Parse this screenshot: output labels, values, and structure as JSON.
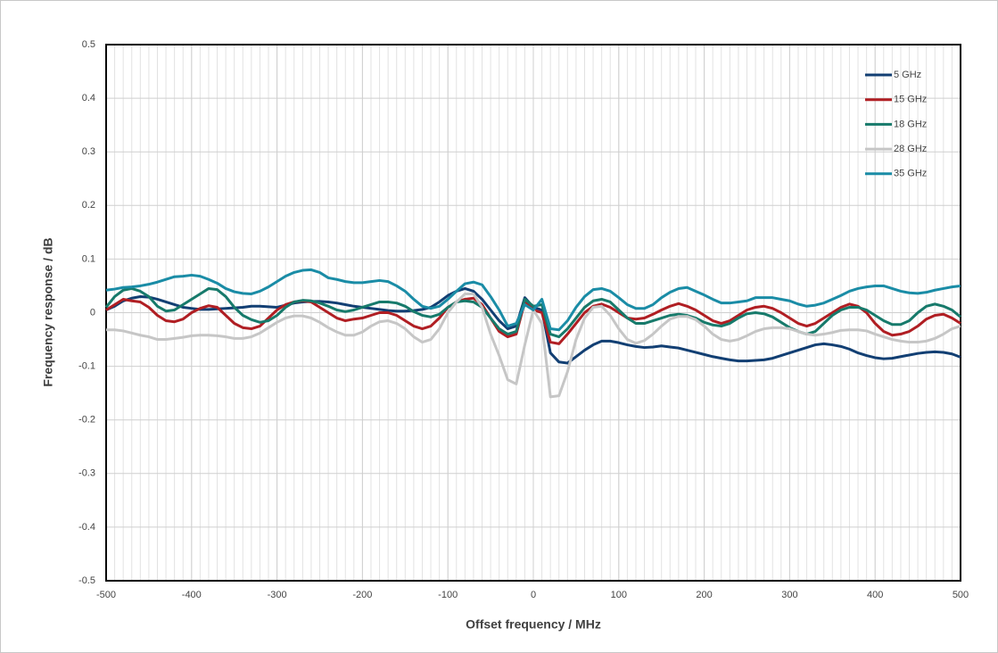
{
  "chart_data": {
    "type": "line",
    "xlabel": "Offset frequency / MHz",
    "ylabel": "Frequency response / dB",
    "x": [
      -500,
      -490,
      -480,
      -470,
      -460,
      -450,
      -440,
      -430,
      -420,
      -410,
      -400,
      -390,
      -380,
      -370,
      -360,
      -350,
      -340,
      -330,
      -320,
      -310,
      -300,
      -290,
      -280,
      -270,
      -260,
      -250,
      -240,
      -230,
      -220,
      -210,
      -200,
      -190,
      -180,
      -170,
      -160,
      -150,
      -140,
      -130,
      -120,
      -110,
      -100,
      -90,
      -80,
      -70,
      -60,
      -50,
      -40,
      -30,
      -20,
      -10,
      0,
      10,
      20,
      30,
      40,
      50,
      60,
      70,
      80,
      90,
      100,
      110,
      120,
      130,
      140,
      150,
      160,
      170,
      180,
      190,
      200,
      210,
      220,
      230,
      240,
      250,
      260,
      270,
      280,
      290,
      300,
      310,
      320,
      330,
      340,
      350,
      360,
      370,
      380,
      390,
      400,
      410,
      420,
      430,
      440,
      450,
      460,
      470,
      480,
      490,
      500
    ],
    "series": [
      {
        "name": "5 GHz",
        "color": "#123f73",
        "values": [
          0.005,
          0.012,
          0.022,
          0.027,
          0.03,
          0.029,
          0.025,
          0.02,
          0.015,
          0.01,
          0.008,
          0.006,
          0.006,
          0.007,
          0.008,
          0.009,
          0.01,
          0.012,
          0.012,
          0.011,
          0.01,
          0.014,
          0.018,
          0.02,
          0.021,
          0.021,
          0.02,
          0.018,
          0.015,
          0.012,
          0.01,
          0.008,
          0.006,
          0.004,
          0.003,
          0.003,
          0.004,
          0.006,
          0.01,
          0.02,
          0.032,
          0.04,
          0.045,
          0.04,
          0.025,
          0.005,
          -0.015,
          -0.03,
          -0.025,
          0.028,
          0.01,
          0.005,
          -0.075,
          -0.092,
          -0.094,
          -0.082,
          -0.07,
          -0.06,
          -0.053,
          -0.053,
          -0.056,
          -0.06,
          -0.063,
          -0.065,
          -0.064,
          -0.062,
          -0.064,
          -0.066,
          -0.07,
          -0.074,
          -0.078,
          -0.082,
          -0.085,
          -0.088,
          -0.09,
          -0.09,
          -0.089,
          -0.088,
          -0.085,
          -0.08,
          -0.075,
          -0.07,
          -0.065,
          -0.06,
          -0.058,
          -0.06,
          -0.063,
          -0.068,
          -0.075,
          -0.08,
          -0.084,
          -0.086,
          -0.085,
          -0.082,
          -0.079,
          -0.076,
          -0.074,
          -0.073,
          -0.074,
          -0.077,
          -0.083
        ]
      },
      {
        "name": "15 GHz",
        "color": "#b01e23",
        "values": [
          0.005,
          0.015,
          0.025,
          0.022,
          0.02,
          0.01,
          -0.005,
          -0.015,
          -0.017,
          -0.012,
          0,
          0.008,
          0.013,
          0.01,
          -0.005,
          -0.02,
          -0.028,
          -0.03,
          -0.025,
          -0.01,
          0.005,
          0.015,
          0.02,
          0.022,
          0.02,
          0.01,
          0,
          -0.01,
          -0.015,
          -0.012,
          -0.01,
          -0.005,
          0,
          0,
          -0.005,
          -0.015,
          -0.025,
          -0.03,
          -0.025,
          -0.01,
          0.01,
          0.02,
          0.025,
          0.027,
          0.015,
          -0.01,
          -0.035,
          -0.045,
          -0.04,
          0.02,
          0.005,
          0,
          -0.055,
          -0.058,
          -0.04,
          -0.02,
          0,
          0.012,
          0.016,
          0.01,
          0,
          -0.01,
          -0.012,
          -0.01,
          -0.003,
          0.005,
          0.012,
          0.017,
          0.012,
          0.005,
          -0.005,
          -0.015,
          -0.02,
          -0.015,
          -0.005,
          0.005,
          0.01,
          0.012,
          0.008,
          0,
          -0.01,
          -0.02,
          -0.025,
          -0.02,
          -0.01,
          0,
          0.01,
          0.016,
          0.012,
          0,
          -0.02,
          -0.035,
          -0.042,
          -0.04,
          -0.035,
          -0.025,
          -0.012,
          -0.005,
          -0.003,
          -0.01,
          -0.02
        ]
      },
      {
        "name": "18 GHz",
        "color": "#177a6b",
        "values": [
          0.01,
          0.03,
          0.042,
          0.045,
          0.04,
          0.03,
          0.012,
          0.003,
          0.005,
          0.015,
          0.025,
          0.035,
          0.045,
          0.043,
          0.03,
          0.01,
          -0.005,
          -0.013,
          -0.018,
          -0.015,
          -0.005,
          0.01,
          0.02,
          0.023,
          0.022,
          0.018,
          0.012,
          0.005,
          0.002,
          0.005,
          0.01,
          0.015,
          0.02,
          0.02,
          0.018,
          0.012,
          0.002,
          -0.005,
          -0.008,
          -0.003,
          0.01,
          0.02,
          0.022,
          0.02,
          0.01,
          -0.01,
          -0.03,
          -0.04,
          -0.035,
          0.025,
          0.012,
          0.015,
          -0.04,
          -0.045,
          -0.03,
          -0.01,
          0.01,
          0.022,
          0.025,
          0.02,
          0.005,
          -0.01,
          -0.02,
          -0.02,
          -0.015,
          -0.01,
          -0.005,
          -0.003,
          -0.005,
          -0.01,
          -0.018,
          -0.023,
          -0.025,
          -0.02,
          -0.01,
          -0.002,
          0,
          -0.002,
          -0.008,
          -0.018,
          -0.028,
          -0.035,
          -0.04,
          -0.035,
          -0.02,
          -0.005,
          0.005,
          0.01,
          0.01,
          0.005,
          -0.005,
          -0.015,
          -0.022,
          -0.022,
          -0.015,
          0,
          0.012,
          0.016,
          0.012,
          0.005,
          -0.008
        ]
      },
      {
        "name": "28 GHz",
        "color": "#c6c6c6",
        "values": [
          -0.032,
          -0.032,
          -0.034,
          -0.038,
          -0.042,
          -0.045,
          -0.05,
          -0.05,
          -0.048,
          -0.046,
          -0.043,
          -0.042,
          -0.042,
          -0.043,
          -0.045,
          -0.048,
          -0.048,
          -0.045,
          -0.038,
          -0.028,
          -0.018,
          -0.01,
          -0.006,
          -0.006,
          -0.01,
          -0.018,
          -0.028,
          -0.036,
          -0.042,
          -0.042,
          -0.036,
          -0.025,
          -0.017,
          -0.015,
          -0.02,
          -0.03,
          -0.045,
          -0.055,
          -0.05,
          -0.03,
          0,
          0.02,
          0.035,
          0.035,
          0.01,
          -0.04,
          -0.08,
          -0.125,
          -0.133,
          -0.06,
          0.005,
          -0.02,
          -0.157,
          -0.155,
          -0.11,
          -0.05,
          -0.01,
          0.01,
          0.012,
          -0.005,
          -0.03,
          -0.05,
          -0.057,
          -0.052,
          -0.04,
          -0.025,
          -0.012,
          -0.007,
          -0.007,
          -0.013,
          -0.025,
          -0.04,
          -0.05,
          -0.053,
          -0.05,
          -0.043,
          -0.035,
          -0.03,
          -0.028,
          -0.028,
          -0.03,
          -0.035,
          -0.04,
          -0.042,
          -0.04,
          -0.037,
          -0.033,
          -0.032,
          -0.032,
          -0.034,
          -0.04,
          -0.045,
          -0.05,
          -0.053,
          -0.055,
          -0.055,
          -0.053,
          -0.048,
          -0.04,
          -0.03,
          -0.025
        ]
      },
      {
        "name": "35 GHz",
        "color": "#1a8ca6",
        "values": [
          0.042,
          0.044,
          0.047,
          0.048,
          0.05,
          0.053,
          0.057,
          0.062,
          0.067,
          0.068,
          0.07,
          0.068,
          0.062,
          0.055,
          0.045,
          0.039,
          0.036,
          0.035,
          0.04,
          0.048,
          0.058,
          0.068,
          0.075,
          0.079,
          0.08,
          0.075,
          0.065,
          0.062,
          0.058,
          0.056,
          0.056,
          0.058,
          0.06,
          0.058,
          0.05,
          0.04,
          0.025,
          0.012,
          0.008,
          0.012,
          0.025,
          0.04,
          0.054,
          0.057,
          0.052,
          0.03,
          0.005,
          -0.025,
          -0.02,
          0.015,
          0.005,
          0.025,
          -0.03,
          -0.032,
          -0.015,
          0.01,
          0.03,
          0.043,
          0.045,
          0.04,
          0.028,
          0.015,
          0.008,
          0.008,
          0.015,
          0.028,
          0.038,
          0.045,
          0.047,
          0.04,
          0.033,
          0.025,
          0.018,
          0.018,
          0.02,
          0.022,
          0.028,
          0.028,
          0.028,
          0.025,
          0.022,
          0.016,
          0.012,
          0.014,
          0.018,
          0.025,
          0.032,
          0.04,
          0.045,
          0.048,
          0.05,
          0.05,
          0.045,
          0.04,
          0.037,
          0.036,
          0.038,
          0.042,
          0.045,
          0.048,
          0.05
        ]
      }
    ],
    "xlim": [
      -500,
      500
    ],
    "xticks": [
      -500,
      -400,
      -300,
      -200,
      -100,
      0,
      100,
      200,
      300,
      400,
      500
    ],
    "ylim": [
      -0.5,
      0.5
    ],
    "yticks": [
      0.5,
      0.4,
      0.3,
      0.2,
      0.1,
      0,
      -0.1,
      -0.2,
      -0.3,
      -0.4,
      -0.5
    ],
    "grid": true,
    "legend": "top-right"
  }
}
